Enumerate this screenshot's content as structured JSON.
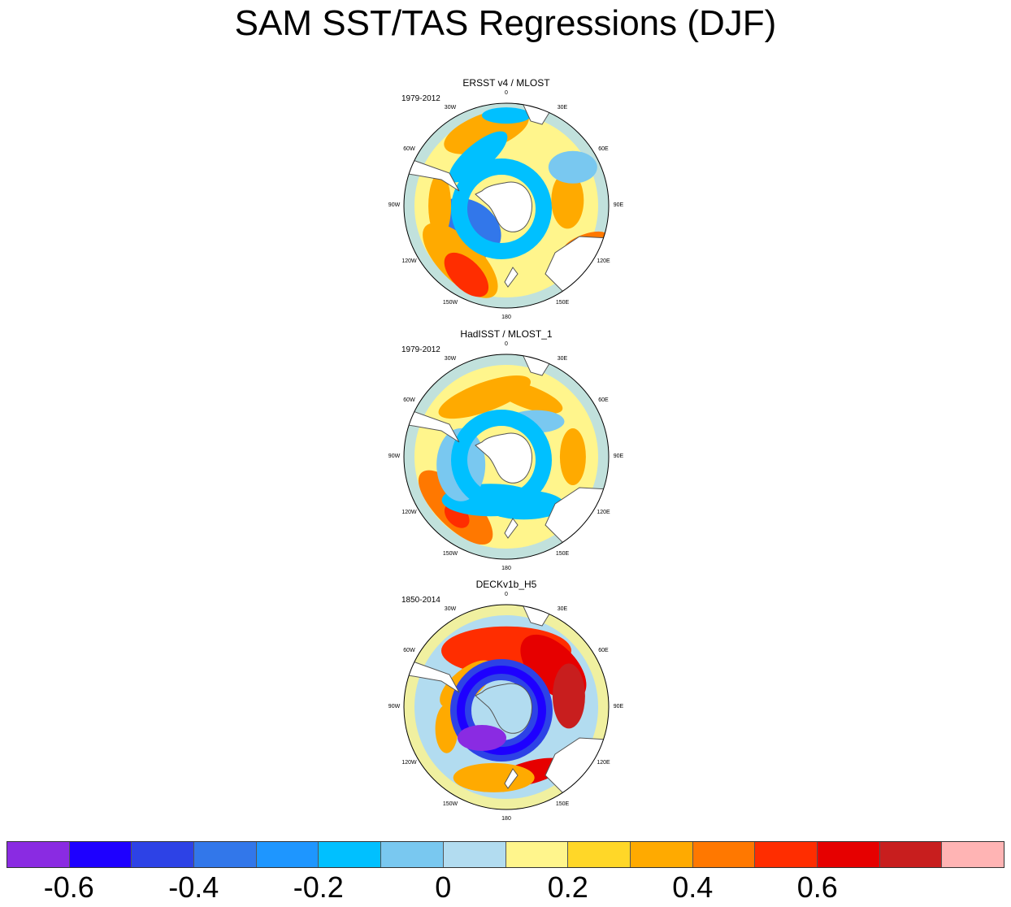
{
  "title": "SAM SST/TAS Regressions (DJF)",
  "panels": [
    {
      "title": "ERSST v4 / MLOST",
      "period": "1979-2012"
    },
    {
      "title": "HadISST / MLOST_1",
      "period": "1979-2012"
    },
    {
      "title": "DECKv1b_H5",
      "period": "1850-2014"
    }
  ],
  "longitude_labels": [
    "0",
    "30E",
    "60E",
    "90E",
    "120E",
    "150E",
    "180",
    "150W",
    "120W",
    "90W",
    "60W",
    "30W"
  ],
  "colorbar": {
    "colors": [
      "#8a2be2",
      "#1e00ff",
      "#2d42e6",
      "#3277ea",
      "#1e96ff",
      "#00c0ff",
      "#79c8f0",
      "#b2dcf0",
      "#fff58c",
      "#ffd728",
      "#ffaa00",
      "#ff7800",
      "#ff2d00",
      "#e60000",
      "#c81e1e",
      "#ffb4b4"
    ],
    "tick_labels": [
      "-0.6",
      "-0.4",
      "-0.2",
      "0",
      "0.2",
      "0.4",
      "0.6"
    ]
  },
  "chart_data": {
    "type": "heatmap",
    "projection": "south-polar-stereographic",
    "title": "SAM SST/TAS Regressions (DJF)",
    "levels": [
      -0.7,
      -0.6,
      -0.5,
      -0.4,
      -0.3,
      -0.2,
      -0.1,
      0,
      0.1,
      0.2,
      0.3,
      0.4,
      0.5,
      0.6,
      0.7
    ],
    "panels": [
      {
        "title": "ERSST v4 / MLOST",
        "period": "1979-2012",
        "features": [
          {
            "region": "mid-latitude band",
            "value": 0.1
          },
          {
            "region": "South Atlantic 30S-45S",
            "value": 0.3
          },
          {
            "region": "South Pacific 150W 45S-60S",
            "value": 0.4
          },
          {
            "region": "Amundsen/Bellingshausen ring",
            "value": -0.3
          },
          {
            "region": "Indian Ocean 90E",
            "value": 0.2
          }
        ]
      },
      {
        "title": "HadISST / MLOST_1",
        "period": "1979-2012",
        "features": [
          {
            "region": "mid-latitude band",
            "value": 0.1
          },
          {
            "region": "South Atlantic 40S",
            "value": 0.3
          },
          {
            "region": "South Pacific 140W 50S",
            "value": 0.4
          },
          {
            "region": "circumpolar ring 55S-65S",
            "value": -0.2
          }
        ]
      },
      {
        "title": "DECKv1b_H5",
        "period": "1850-2014",
        "features": [
          {
            "region": "mid-latitude band 40S-50S",
            "value": 0.5
          },
          {
            "region": "South Indian 60E 45S",
            "value": 0.6
          },
          {
            "region": "circumpolar ring 55S-65S",
            "value": -0.6
          },
          {
            "region": "Ross Sea sector 120W-150W",
            "value": -0.7
          },
          {
            "region": "Tasman Sea 45S",
            "value": 0.6
          }
        ]
      }
    ]
  }
}
